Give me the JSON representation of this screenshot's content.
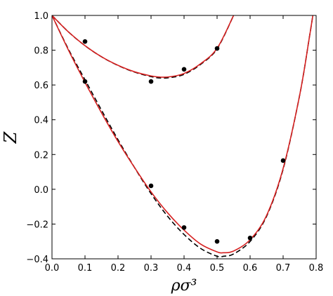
{
  "chart_data": {
    "type": "line",
    "xlabel": "ρσ³",
    "ylabel": "Z",
    "xlim": [
      0.0,
      0.8
    ],
    "ylim": [
      -0.4,
      1.0
    ],
    "xticks": [
      "0.0",
      "0.1",
      "0.2",
      "0.3",
      "0.4",
      "0.5",
      "0.6",
      "0.7",
      "0.8"
    ],
    "yticks": [
      "−0.4",
      "−0.2",
      "0.0",
      "0.2",
      "0.4",
      "0.6",
      "0.8",
      "1.0"
    ],
    "grid": false,
    "series": [
      {
        "style": "solid",
        "color": "#d62020",
        "x": [
          0.0,
          0.05,
          0.1,
          0.15,
          0.2,
          0.25,
          0.3,
          0.33,
          0.36,
          0.4,
          0.45,
          0.5,
          0.55
        ],
        "y": [
          1.0,
          0.905,
          0.826,
          0.762,
          0.713,
          0.676,
          0.652,
          0.645,
          0.648,
          0.666,
          0.722,
          0.811,
          1.0
        ]
      },
      {
        "style": "dashed",
        "color": "#000000",
        "x": [
          0.0,
          0.05,
          0.1,
          0.15,
          0.2,
          0.25,
          0.3,
          0.33,
          0.36,
          0.4,
          0.45,
          0.5,
          0.55
        ],
        "y": [
          1.0,
          0.905,
          0.826,
          0.762,
          0.712,
          0.674,
          0.648,
          0.64,
          0.643,
          0.661,
          0.718,
          0.808,
          1.0
        ]
      },
      {
        "style": "solid",
        "color": "#d62020",
        "x": [
          0.0,
          0.05,
          0.1,
          0.15,
          0.2,
          0.25,
          0.3,
          0.35,
          0.4,
          0.45,
          0.5,
          0.52,
          0.55,
          0.6,
          0.65,
          0.7,
          0.75,
          0.78,
          0.79
        ],
        "y": [
          1.0,
          0.8,
          0.615,
          0.44,
          0.275,
          0.125,
          -0.015,
          -0.135,
          -0.235,
          -0.315,
          -0.36,
          -0.365,
          -0.355,
          -0.29,
          -0.15,
          0.12,
          0.54,
          0.88,
          1.0
        ]
      },
      {
        "style": "dashed",
        "color": "#000000",
        "x": [
          0.0,
          0.05,
          0.1,
          0.15,
          0.2,
          0.25,
          0.3,
          0.35,
          0.4,
          0.45,
          0.5,
          0.52,
          0.55,
          0.6,
          0.65,
          0.7,
          0.75,
          0.78,
          0.79
        ],
        "y": [
          1.0,
          0.805,
          0.63,
          0.455,
          0.285,
          0.125,
          -0.025,
          -0.155,
          -0.26,
          -0.34,
          -0.385,
          -0.385,
          -0.372,
          -0.3,
          -0.155,
          0.115,
          0.54,
          0.88,
          1.0
        ]
      }
    ],
    "points": [
      {
        "x": 0.1,
        "y": 0.85
      },
      {
        "x": 0.3,
        "y": 0.62
      },
      {
        "x": 0.4,
        "y": 0.69
      },
      {
        "x": 0.5,
        "y": 0.81
      },
      {
        "x": 0.1,
        "y": 0.62
      },
      {
        "x": 0.3,
        "y": 0.02
      },
      {
        "x": 0.4,
        "y": -0.22
      },
      {
        "x": 0.5,
        "y": -0.3
      },
      {
        "x": 0.6,
        "y": -0.28
      },
      {
        "x": 0.7,
        "y": 0.165
      }
    ]
  }
}
